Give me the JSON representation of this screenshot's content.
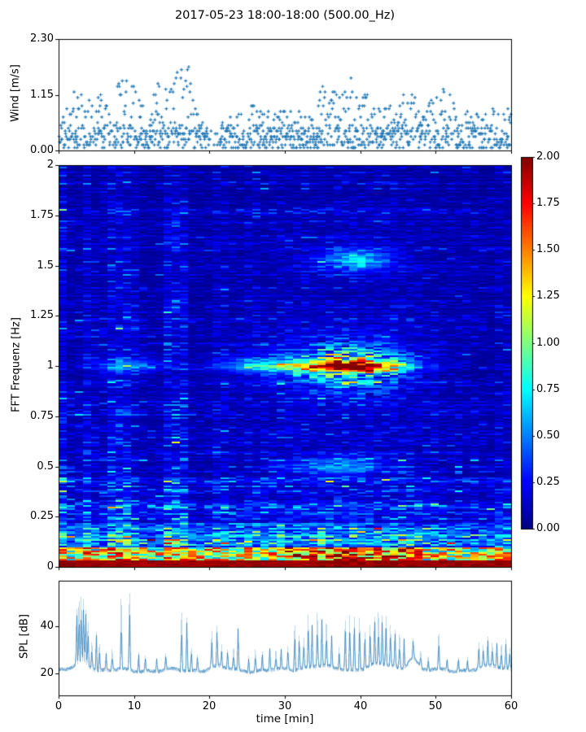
{
  "title": "2017-05-23 18:00-18:00 (500.00_Hz)",
  "accent_color": "#1f77b4",
  "frame_color": "#000000",
  "chart_data": [
    {
      "id": "wind",
      "type": "scatter",
      "ylabel": "Wind [m/s]",
      "ylim": [
        0,
        2.3
      ],
      "yticks": [
        {
          "v": 0,
          "label": "0.00"
        },
        {
          "v": 1.15,
          "label": "1.15"
        },
        {
          "v": 2.3,
          "label": "2.30"
        }
      ],
      "xlim": [
        0,
        60
      ],
      "marker": "plus",
      "color": "#1f77b4",
      "quantize_step": 0.0575,
      "max_wind_per_min": [
        0.85,
        0.8,
        1.3,
        1.35,
        1.15,
        1.35,
        1.2,
        0.95,
        1.45,
        1.5,
        1.35,
        1.2,
        0.85,
        1.5,
        1.3,
        1.45,
        2.28,
        1.9,
        1.15,
        0.7,
        0.45,
        0.5,
        0.65,
        0.8,
        0.9,
        0.9,
        0.95,
        0.9,
        0.8,
        0.8,
        0.85,
        0.8,
        0.8,
        0.95,
        1.2,
        1.45,
        1.3,
        1.2,
        1.45,
        1.75,
        1.55,
        1.2,
        1.1,
        1.05,
        0.95,
        1.1,
        1.4,
        1.15,
        0.9,
        1.0,
        1.2,
        1.4,
        1.15,
        0.9,
        1.0,
        0.85,
        0.7,
        0.9,
        0.85,
        0.9,
        0.85
      ]
    },
    {
      "id": "spectrogram",
      "type": "heatmap",
      "ylabel": "FFT Frequenz [Hz]",
      "ylim": [
        0,
        2
      ],
      "xlim": [
        0,
        60
      ],
      "colormap": "jet",
      "clim": [
        0,
        2
      ],
      "yticks": [
        {
          "v": 2,
          "label": "2"
        },
        {
          "v": 1.75,
          "label": "1.75"
        },
        {
          "v": 1.5,
          "label": "1.5"
        },
        {
          "v": 1.25,
          "label": "1.25"
        },
        {
          "v": 1,
          "label": "1"
        },
        {
          "v": 0.75,
          "label": "0.75"
        },
        {
          "v": 0.5,
          "label": "0.5"
        },
        {
          "v": 0.25,
          "label": "0.25"
        },
        {
          "v": 0,
          "label": "0"
        }
      ],
      "colorbar_ticks": [
        "2.00",
        "1.75",
        "1.50",
        "1.25",
        "1.00",
        "0.75",
        "0.50",
        "0.25",
        "0.00"
      ],
      "background_level": {
        "base": 0.2,
        "low_freq_boost": 0.55,
        "low_freq_scale": 0.3
      },
      "time_stripes": [
        [
          0,
          1.5,
          1.5
        ],
        [
          1.5,
          3,
          0.85
        ],
        [
          3,
          4.8,
          1.35
        ],
        [
          4.8,
          6,
          0.9
        ],
        [
          6,
          9.5,
          1.5
        ],
        [
          9.5,
          10.5,
          1.1
        ],
        [
          10.5,
          14.3,
          0.75
        ],
        [
          14.3,
          17.2,
          1.55
        ],
        [
          17.2,
          20.5,
          0.7
        ],
        [
          20.5,
          22.5,
          1.1
        ],
        [
          22.5,
          25,
          0.8
        ],
        [
          25,
          31,
          1.0
        ],
        [
          31,
          45,
          1.05
        ],
        [
          45,
          50,
          0.95
        ],
        [
          50,
          55.5,
          0.8
        ],
        [
          55.5,
          57.5,
          0.7
        ],
        [
          57.5,
          60,
          0.95
        ]
      ],
      "bands": [
        {
          "freq": 1.0,
          "fwidth": 0.03,
          "t_center": 38.5,
          "t_width": 7.0,
          "amp": 1.55,
          "halo_fwidth": 0.12,
          "halo_amp": 0.5
        },
        {
          "freq": 1.0,
          "fwidth": 0.03,
          "t_center": 27.0,
          "t_width": 6.0,
          "amp": 0.5,
          "halo_fwidth": 0.1,
          "halo_amp": 0.2
        },
        {
          "freq": 1.0,
          "fwidth": 0.03,
          "t_center": 9.0,
          "t_width": 4.0,
          "amp": 0.45,
          "halo_fwidth": 0.08,
          "halo_amp": 0.15
        },
        {
          "freq": 1.53,
          "fwidth": 0.05,
          "t_center": 39.5,
          "t_width": 4.5,
          "amp": 0.55,
          "halo_fwidth": 0.08,
          "halo_amp": 0.1
        },
        {
          "freq": 0.5,
          "fwidth": 0.04,
          "t_center": 37.0,
          "t_width": 6.0,
          "amp": 0.4,
          "halo_fwidth": 0.06,
          "halo_amp": 0.1
        }
      ],
      "bottom_band": {
        "solid_below_hz": 0.035,
        "value": 2.0,
        "mix_below_hz": 0.1,
        "boost_t": [
          30,
          48
        ]
      }
    },
    {
      "id": "spl",
      "type": "line",
      "ylabel": "SPL [dB]",
      "xlabel": "time [min]",
      "color": "#1f77b4",
      "yticks": [
        {
          "v": 20,
          "label": "20"
        },
        {
          "v": 40,
          "label": "40"
        }
      ],
      "xticks": [
        {
          "v": 0,
          "label": "0"
        },
        {
          "v": 10,
          "label": "10"
        },
        {
          "v": 20,
          "label": "20"
        },
        {
          "v": 30,
          "label": "30"
        },
        {
          "v": 40,
          "label": "40"
        },
        {
          "v": 50,
          "label": "50"
        },
        {
          "v": 60,
          "label": "60"
        }
      ],
      "baseline_db": 21.3,
      "noise_db": 0.9,
      "humps": [
        [
          3.2,
          1.3,
          3.5
        ],
        [
          21,
          1.5,
          1.5
        ],
        [
          34,
          2.5,
          2
        ],
        [
          42.5,
          2.5,
          2.5
        ],
        [
          46.9,
          0.9,
          5.5
        ],
        [
          57.5,
          2.5,
          1.5
        ]
      ],
      "peaks": [
        [
          2.4,
          46
        ],
        [
          2.7,
          48
        ],
        [
          3.0,
          50
        ],
        [
          3.3,
          49
        ],
        [
          3.6,
          45
        ],
        [
          3.9,
          40
        ],
        [
          4.4,
          34
        ],
        [
          5.0,
          38
        ],
        [
          5.4,
          33
        ],
        [
          6.3,
          30
        ],
        [
          7.1,
          31
        ],
        [
          8.3,
          52
        ],
        [
          9.4,
          56
        ],
        [
          10.6,
          30
        ],
        [
          11.5,
          29
        ],
        [
          13.0,
          28
        ],
        [
          14.2,
          29
        ],
        [
          16.3,
          47
        ],
        [
          17.0,
          45
        ],
        [
          17.6,
          32
        ],
        [
          18.4,
          29
        ],
        [
          20.3,
          38
        ],
        [
          21.0,
          39
        ],
        [
          21.6,
          31
        ],
        [
          22.4,
          30
        ],
        [
          23.2,
          31
        ],
        [
          23.8,
          41
        ],
        [
          25.2,
          29
        ],
        [
          26.1,
          31
        ],
        [
          27.0,
          30
        ],
        [
          28.0,
          32
        ],
        [
          28.8,
          30
        ],
        [
          29.5,
          31
        ],
        [
          30.4,
          32
        ],
        [
          31.3,
          42
        ],
        [
          31.9,
          37
        ],
        [
          32.5,
          34
        ],
        [
          33.1,
          44
        ],
        [
          33.6,
          40
        ],
        [
          34.3,
          45
        ],
        [
          34.9,
          42
        ],
        [
          35.5,
          40
        ],
        [
          36.2,
          35
        ],
        [
          37.2,
          32
        ],
        [
          38.0,
          44
        ],
        [
          38.6,
          45
        ],
        [
          39.2,
          44
        ],
        [
          39.9,
          45
        ],
        [
          40.6,
          37
        ],
        [
          41.3,
          39
        ],
        [
          41.9,
          43
        ],
        [
          42.4,
          44
        ],
        [
          42.9,
          43
        ],
        [
          43.4,
          42
        ],
        [
          44.0,
          40
        ],
        [
          44.6,
          38
        ],
        [
          45.2,
          37
        ],
        [
          45.8,
          34
        ],
        [
          47.0,
          31
        ],
        [
          48.0,
          29
        ],
        [
          49.0,
          28
        ],
        [
          50.4,
          37
        ],
        [
          51.5,
          27
        ],
        [
          53.0,
          28
        ],
        [
          54.2,
          27
        ],
        [
          55.7,
          33
        ],
        [
          56.3,
          31
        ],
        [
          56.9,
          34
        ],
        [
          57.5,
          32
        ],
        [
          58.1,
          33
        ],
        [
          58.7,
          32
        ],
        [
          59.3,
          34
        ],
        [
          59.8,
          31
        ]
      ]
    }
  ]
}
